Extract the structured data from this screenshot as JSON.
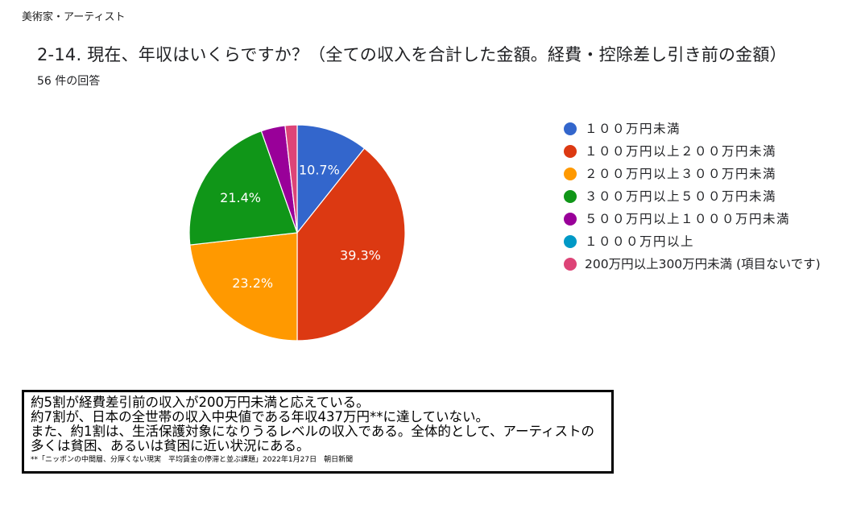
{
  "header": {
    "category": "美術家・アーティスト",
    "question": "2-14. 現在、年収はいくらですか？（全ての収入を合計した金額。経費・控除差し引き前の金額）",
    "responses": "56 件の回答"
  },
  "chart_data": {
    "type": "pie",
    "start_angle_deg": 90,
    "direction": "clockwise",
    "slices": [
      {
        "label": "１００万円未満",
        "value": 10.7,
        "display": "10.7%",
        "color": "#3366cc",
        "show_label": true
      },
      {
        "label": "１００万円以上２００万円未満",
        "value": 39.3,
        "display": "39.3%",
        "color": "#dc3912",
        "show_label": true
      },
      {
        "label": "２００万円以上３００万円未満",
        "value": 23.2,
        "display": "23.2%",
        "color": "#ff9900",
        "show_label": true
      },
      {
        "label": "３００万円以上５００万円未満",
        "value": 21.4,
        "display": "21.4%",
        "color": "#109618",
        "show_label": true
      },
      {
        "label": "５００万円以上１０００万円未満",
        "value": 3.6,
        "display": "3.6%",
        "color": "#990099",
        "show_label": false
      },
      {
        "label": "１０００万円以上",
        "value": 0,
        "display": "0%",
        "color": "#0099c6",
        "show_label": false
      },
      {
        "label": "200万円以上300万円未満 (項目ないです)",
        "value": 1.8,
        "display": "1.8%",
        "color": "#dd4477",
        "show_label": false
      }
    ],
    "legend_position": "right"
  },
  "note": {
    "lines": [
      "約5割が経費差引前の収入が200万円未満と応えている。",
      "約7割が、日本の全世帯の収入中央値である年収437万円**に達していない。",
      "また、約1割は、生活保護対象になりうるレベルの収入である。全体的として、アーティストの多くは貧困、あるいは貧困に近い状況にある。"
    ],
    "footnote": "**「ニッポンの中間層、分厚くない現実　平均賃金の停滞と並ぶ課題」2022年1月27日　朝日新聞"
  }
}
